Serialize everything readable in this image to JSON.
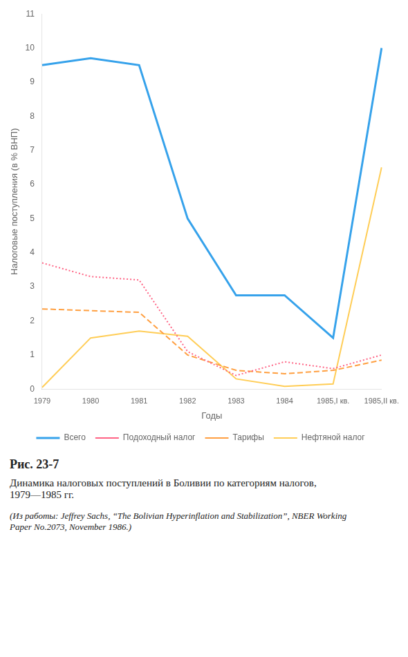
{
  "chart_data": {
    "type": "line",
    "title": "Рис. 23-7",
    "subtitle": "Динамика налоговых поступлений в Боливии по категориям налогов,\n1979—1985 гг.",
    "source": "(Из работы: Jeffrey Sachs, “The Bolivian Hyperinflation and Stabilization”, NBER Working\nPaper No.2073, November 1986.)",
    "xlabel": "Годы",
    "ylabel": "Налоговые поступления (в % ВНП)",
    "categories": [
      "1979",
      "1980",
      "1981",
      "1982",
      "1983",
      "1984",
      "1985,I кв.",
      "1985,II кв."
    ],
    "series": [
      {
        "name": "Всего",
        "values": [
          9.5,
          9.7,
          9.5,
          5.0,
          2.75,
          2.75,
          1.5,
          10.0
        ],
        "line_style": "solid"
      },
      {
        "name": "Подоходный\nналог",
        "values": [
          3.7,
          3.3,
          3.2,
          1.1,
          0.4,
          0.8,
          0.6,
          1.0
        ],
        "line_style": "dotted"
      },
      {
        "name": "Тарифы",
        "values": [
          2.35,
          2.3,
          2.25,
          1.0,
          0.55,
          0.45,
          0.55,
          0.85
        ],
        "line_style": "dashed"
      },
      {
        "name": "Нефтяной\nналог",
        "values": [
          0.05,
          1.5,
          1.7,
          1.55,
          0.3,
          0.08,
          0.15,
          6.5
        ],
        "line_style": "solid"
      }
    ],
    "ylim": [
      0,
      11
    ],
    "yticks": [
      0,
      1,
      2,
      3,
      4,
      5,
      6,
      7,
      8,
      9,
      10,
      11
    ],
    "grid": false,
    "legend": "bottom"
  }
}
